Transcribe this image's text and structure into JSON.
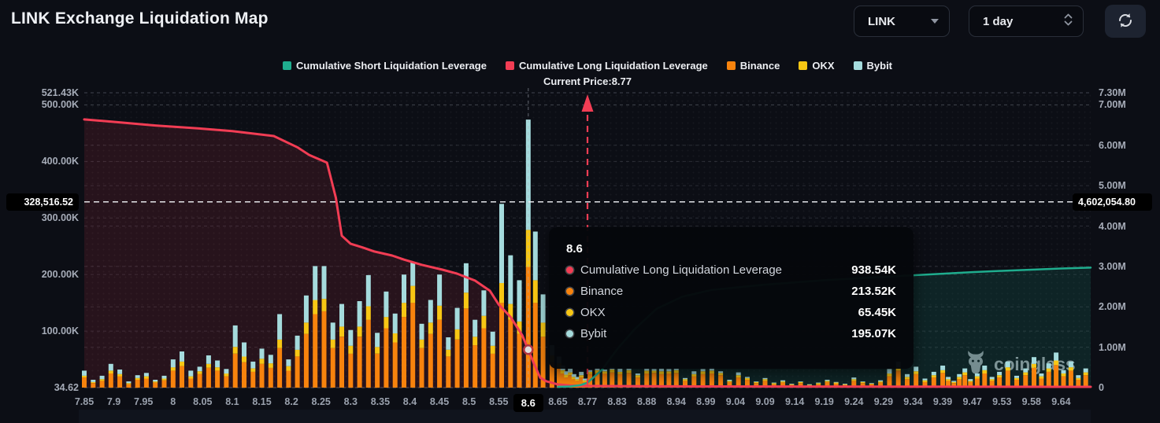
{
  "header": {
    "title": "LINK Exchange Liquidation Map"
  },
  "controls": {
    "symbol": {
      "value": "LINK"
    },
    "interval": {
      "value": "1 day"
    }
  },
  "legend": {
    "items": [
      {
        "label": "Cumulative Short Liquidation Leverage",
        "color": "#1fad8e"
      },
      {
        "label": "Cumulative Long Liquidation Leverage",
        "color": "#f23d54"
      },
      {
        "label": "Binance",
        "color": "#f8830d"
      },
      {
        "label": "OKX",
        "color": "#f8c714"
      },
      {
        "label": "Bybit",
        "color": "#a5dbdd"
      }
    ]
  },
  "watermark": {
    "text": "coinglass"
  },
  "tooltip": {
    "title": "8.6",
    "rows": [
      {
        "label": "Cumulative Long Liquidation Leverage",
        "value": "938.54K",
        "color": "#f23d54"
      },
      {
        "label": "Binance",
        "value": "213.52K",
        "color": "#f8830d"
      },
      {
        "label": "OKX",
        "value": "65.45K",
        "color": "#f8c714"
      },
      {
        "label": "Bybit",
        "value": "195.07K",
        "color": "#a5dbdd"
      }
    ]
  },
  "chart_data": {
    "type": "bar",
    "title": "LINK Exchange Liquidation Map",
    "current_price": 8.77,
    "current_price_label": "Current Price:8.77",
    "highlighted_x_tick": "8.6",
    "highlighted_price": 8.6,
    "x_ticks": [
      "7.85",
      "7.9",
      "7.95",
      "8",
      "8.05",
      "8.1",
      "8.15",
      "8.2",
      "8.25",
      "8.3",
      "8.35",
      "8.4",
      "8.45",
      "8.5",
      "8.55",
      "8.6",
      "8.65",
      "8.77",
      "8.83",
      "8.88",
      "8.94",
      "8.99",
      "9.04",
      "9.09",
      "9.14",
      "9.19",
      "9.24",
      "9.29",
      "9.34",
      "9.39",
      "9.47",
      "9.53",
      "9.58",
      "9.64"
    ],
    "x_tick_values": [
      7.85,
      7.9,
      7.95,
      8,
      8.05,
      8.1,
      8.15,
      8.2,
      8.25,
      8.3,
      8.35,
      8.4,
      8.45,
      8.5,
      8.55,
      8.6,
      8.65,
      8.77,
      8.83,
      8.88,
      8.94,
      8.99,
      9.04,
      9.09,
      9.14,
      9.19,
      9.24,
      9.29,
      9.34,
      9.39,
      9.47,
      9.53,
      9.58,
      9.64
    ],
    "left_axis": {
      "min": 34.62,
      "max": 521430,
      "ticks": [
        {
          "label": "521.43K",
          "value": 521430
        },
        {
          "label": "500.00K",
          "value": 500000
        },
        {
          "label": "400.00K",
          "value": 400000
        },
        {
          "label": "300.00K",
          "value": 300000
        },
        {
          "label": "200.00K",
          "value": 200000
        },
        {
          "label": "100.00K",
          "value": 100000
        },
        {
          "label": "34.62",
          "value": 34.62
        }
      ],
      "crosshair_label": "328,516.52",
      "crosshair_value": 328516.52
    },
    "right_axis": {
      "min": 0,
      "max": 7300000,
      "ticks": [
        {
          "label": "7.30M",
          "value": 7300000
        },
        {
          "label": "7.00M",
          "value": 7000000
        },
        {
          "label": "6.00M",
          "value": 6000000
        },
        {
          "label": "5.00M",
          "value": 5000000
        },
        {
          "label": "4.00M",
          "value": 4000000
        },
        {
          "label": "3.00M",
          "value": 3000000
        },
        {
          "label": "2.00M",
          "value": 2000000
        },
        {
          "label": "1.00M",
          "value": 1000000
        },
        {
          "label": "0",
          "value": 0
        }
      ],
      "crosshair_label": "4,602,054.80",
      "crosshair_value": 4602054.8
    },
    "bar_series": [
      {
        "name": "Binance",
        "color": "#f8830d"
      },
      {
        "name": "OKX",
        "color": "#f8c714"
      },
      {
        "name": "Bybit",
        "color": "#a5dbdd"
      }
    ],
    "bars_unit": "K",
    "bars": [
      [
        7.85,
        18,
        3,
        9
      ],
      [
        7.865,
        8,
        2,
        4
      ],
      [
        7.88,
        12,
        3,
        6
      ],
      [
        7.895,
        25,
        5,
        12
      ],
      [
        7.91,
        20,
        4,
        8
      ],
      [
        7.925,
        6,
        2,
        3
      ],
      [
        7.94,
        14,
        3,
        5
      ],
      [
        7.955,
        16,
        4,
        6
      ],
      [
        7.97,
        9,
        2,
        3
      ],
      [
        7.985,
        13,
        3,
        5
      ],
      [
        8.0,
        30,
        6,
        14
      ],
      [
        8.015,
        38,
        8,
        18
      ],
      [
        8.03,
        16,
        4,
        10
      ],
      [
        8.045,
        24,
        5,
        8
      ],
      [
        8.06,
        35,
        7,
        15
      ],
      [
        8.075,
        30,
        6,
        12
      ],
      [
        8.09,
        20,
        5,
        8
      ],
      [
        8.105,
        60,
        12,
        38
      ],
      [
        8.12,
        45,
        10,
        25
      ],
      [
        8.135,
        28,
        6,
        12
      ],
      [
        8.15,
        42,
        9,
        18
      ],
      [
        8.165,
        35,
        8,
        15
      ],
      [
        8.18,
        70,
        15,
        45
      ],
      [
        8.195,
        30,
        8,
        12
      ],
      [
        8.21,
        55,
        12,
        25
      ],
      [
        8.225,
        95,
        20,
        48
      ],
      [
        8.24,
        130,
        25,
        60
      ],
      [
        8.255,
        135,
        22,
        58
      ],
      [
        8.27,
        70,
        15,
        30
      ],
      [
        8.285,
        90,
        18,
        40
      ],
      [
        8.3,
        60,
        14,
        28
      ],
      [
        8.315,
        90,
        18,
        45
      ],
      [
        8.33,
        120,
        24,
        55
      ],
      [
        8.345,
        60,
        12,
        25
      ],
      [
        8.36,
        105,
        20,
        45
      ],
      [
        8.375,
        80,
        16,
        35
      ],
      [
        8.39,
        125,
        25,
        50
      ],
      [
        8.405,
        150,
        30,
        42
      ],
      [
        8.42,
        70,
        15,
        28
      ],
      [
        8.435,
        95,
        20,
        40
      ],
      [
        8.45,
        120,
        25,
        55
      ],
      [
        8.465,
        55,
        12,
        22
      ],
      [
        8.48,
        85,
        18,
        38
      ],
      [
        8.495,
        140,
        28,
        52
      ],
      [
        8.51,
        75,
        15,
        30
      ],
      [
        8.525,
        105,
        22,
        45
      ],
      [
        8.54,
        60,
        14,
        25
      ],
      [
        8.555,
        150,
        35,
        140
      ],
      [
        8.57,
        120,
        28,
        86
      ],
      [
        8.585,
        95,
        22,
        73
      ],
      [
        8.6,
        213.52,
        65.45,
        195.07
      ],
      [
        8.612,
        150,
        40,
        86
      ],
      [
        8.625,
        90,
        25,
        50
      ],
      [
        8.64,
        45,
        12,
        18
      ],
      [
        8.655,
        35,
        8,
        12
      ],
      [
        8.67,
        25,
        6,
        8
      ],
      [
        8.685,
        18,
        5,
        6
      ],
      [
        8.7,
        22,
        5,
        7
      ],
      [
        8.715,
        15,
        4,
        5
      ],
      [
        8.73,
        12,
        3,
        4
      ],
      [
        8.745,
        18,
        4,
        6
      ],
      [
        8.76,
        10,
        3,
        3
      ],
      [
        8.775,
        24,
        4,
        3
      ],
      [
        8.79,
        26,
        5,
        4
      ],
      [
        8.805,
        25,
        4,
        3
      ],
      [
        8.82,
        27,
        5,
        4
      ],
      [
        8.835,
        24,
        4,
        6
      ],
      [
        8.85,
        26,
        5,
        3
      ],
      [
        8.865,
        18,
        4,
        3
      ],
      [
        8.88,
        25,
        5,
        4
      ],
      [
        8.895,
        26,
        4,
        3
      ],
      [
        8.91,
        24,
        5,
        6
      ],
      [
        8.925,
        25,
        4,
        4
      ],
      [
        8.94,
        26,
        5,
        3
      ],
      [
        8.955,
        12,
        3,
        2
      ],
      [
        8.97,
        20,
        4,
        5
      ],
      [
        8.985,
        24,
        5,
        4
      ],
      [
        9.0,
        25,
        5,
        6
      ],
      [
        9.015,
        22,
        4,
        3
      ],
      [
        9.03,
        10,
        2,
        2
      ],
      [
        9.045,
        18,
        4,
        5
      ],
      [
        9.06,
        14,
        3,
        2
      ],
      [
        9.075,
        8,
        2,
        1
      ],
      [
        9.09,
        12,
        3,
        2
      ],
      [
        9.105,
        6,
        2,
        1
      ],
      [
        9.12,
        9,
        2,
        2
      ],
      [
        9.135,
        5,
        1,
        1
      ],
      [
        9.15,
        8,
        2,
        1
      ],
      [
        9.165,
        4,
        1,
        1
      ],
      [
        9.18,
        6,
        2,
        1
      ],
      [
        9.195,
        10,
        2,
        2
      ],
      [
        9.21,
        7,
        2,
        1
      ],
      [
        9.225,
        5,
        1,
        1
      ],
      [
        9.24,
        12,
        3,
        3
      ],
      [
        9.255,
        8,
        2,
        1
      ],
      [
        9.27,
        6,
        1,
        1
      ],
      [
        9.285,
        9,
        2,
        2
      ],
      [
        9.3,
        20,
        5,
        8
      ],
      [
        9.315,
        30,
        6,
        10
      ],
      [
        9.33,
        15,
        4,
        5
      ],
      [
        9.345,
        24,
        5,
        8
      ],
      [
        9.36,
        10,
        3,
        3
      ],
      [
        9.375,
        18,
        4,
        6
      ],
      [
        9.39,
        26,
        5,
        8
      ],
      [
        9.405,
        12,
        3,
        4
      ],
      [
        9.42,
        8,
        2,
        2
      ],
      [
        9.435,
        15,
        4,
        5
      ],
      [
        9.45,
        22,
        5,
        7
      ],
      [
        9.465,
        10,
        2,
        3
      ],
      [
        9.48,
        16,
        4,
        5
      ],
      [
        9.495,
        25,
        6,
        8
      ],
      [
        9.51,
        12,
        3,
        4
      ],
      [
        9.525,
        18,
        4,
        6
      ],
      [
        9.54,
        30,
        6,
        10
      ],
      [
        9.555,
        14,
        3,
        4
      ],
      [
        9.57,
        22,
        5,
        7
      ],
      [
        9.585,
        35,
        7,
        12
      ],
      [
        9.6,
        16,
        4,
        5
      ],
      [
        9.615,
        28,
        6,
        9
      ],
      [
        9.63,
        40,
        8,
        14
      ],
      [
        9.645,
        20,
        5,
        6
      ],
      [
        9.66,
        30,
        6,
        10
      ],
      [
        9.675,
        14,
        3,
        5
      ],
      [
        9.69,
        22,
        5,
        7
      ]
    ],
    "lines": [
      {
        "name": "Cumulative Long Liquidation Leverage",
        "color": "#f23d54",
        "fill": "rgba(242,61,84,0.12)",
        "axis": "right",
        "unit": "M",
        "width": 3,
        "points": [
          [
            7.85,
            6.64
          ],
          [
            7.9,
            6.58
          ],
          [
            7.97,
            6.49
          ],
          [
            8.05,
            6.41
          ],
          [
            8.1,
            6.35
          ],
          [
            8.17,
            6.23
          ],
          [
            8.21,
            5.95
          ],
          [
            8.23,
            5.76
          ],
          [
            8.26,
            5.57
          ],
          [
            8.275,
            4.7
          ],
          [
            8.285,
            3.76
          ],
          [
            8.3,
            3.56
          ],
          [
            8.32,
            3.47
          ],
          [
            8.34,
            3.37
          ],
          [
            8.37,
            3.27
          ],
          [
            8.39,
            3.17
          ],
          [
            8.42,
            3.04
          ],
          [
            8.455,
            2.92
          ],
          [
            8.48,
            2.82
          ],
          [
            8.51,
            2.65
          ],
          [
            8.535,
            2.4
          ],
          [
            8.55,
            2.06
          ],
          [
            8.57,
            1.75
          ],
          [
            8.59,
            1.29
          ],
          [
            8.6,
            0.93854
          ],
          [
            8.61,
            0.58
          ],
          [
            8.62,
            0.25
          ],
          [
            8.63,
            0.16
          ],
          [
            8.65,
            0.08
          ],
          [
            8.7,
            0.05
          ],
          [
            8.77,
            0.04
          ],
          [
            9.0,
            0.03
          ],
          [
            9.3,
            0.025
          ],
          [
            9.64,
            0.02
          ],
          [
            9.7,
            0.02
          ]
        ]
      },
      {
        "name": "Cumulative Short Liquidation Leverage",
        "color": "#1fad8e",
        "fill": "rgba(31,173,142,0.14)",
        "axis": "right",
        "unit": "M",
        "width": 2.5,
        "points": [
          [
            8.65,
            0.02
          ],
          [
            8.7,
            0.03
          ],
          [
            8.74,
            0.06
          ],
          [
            8.77,
            0.12
          ],
          [
            8.8,
            0.45
          ],
          [
            8.83,
            0.95
          ],
          [
            8.86,
            1.45
          ],
          [
            8.9,
            1.95
          ],
          [
            8.95,
            2.25
          ],
          [
            9.0,
            2.42
          ],
          [
            9.09,
            2.55
          ],
          [
            9.19,
            2.66
          ],
          [
            9.29,
            2.74
          ],
          [
            9.39,
            2.82
          ],
          [
            9.47,
            2.86
          ],
          [
            9.53,
            2.89
          ],
          [
            9.58,
            2.92
          ],
          [
            9.64,
            2.95
          ],
          [
            9.7,
            2.97
          ]
        ]
      }
    ],
    "marker": {
      "price": 8.6,
      "value_m": 0.93854
    }
  }
}
